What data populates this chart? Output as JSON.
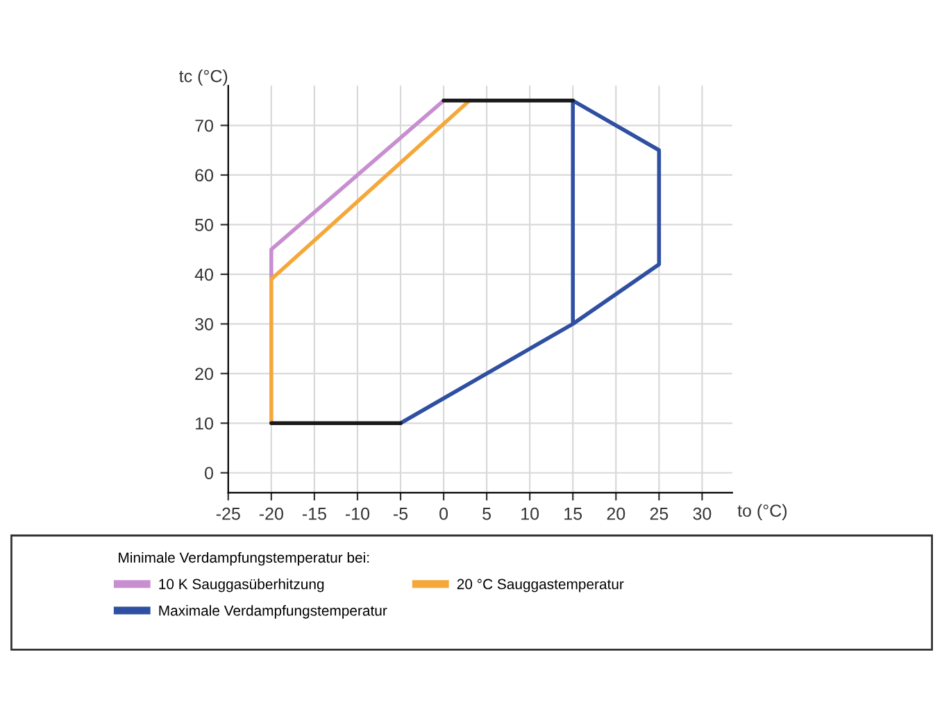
{
  "chart_data": {
    "type": "line",
    "xlabel": "to (°C)",
    "ylabel": "tc (°C)",
    "legend_title": "Minimale Verdampfungstemperatur bei:",
    "series": [
      {
        "name": "10 K Sauggasüberhitzung",
        "color": "#c88fd0",
        "x": [
          -20,
          -20,
          0
        ],
        "values": [
          39,
          45,
          75
        ]
      },
      {
        "name": "20 °C Sauggastemperatur",
        "color": "#f5a83a",
        "x": [
          -20,
          -20,
          3
        ],
        "values": [
          10,
          39,
          75
        ]
      },
      {
        "name": "Maximale Verdampfungstemperatur",
        "color": "#2f4fa2",
        "x": [
          -5,
          15,
          25,
          25,
          15,
          15
        ],
        "values": [
          10,
          30,
          42,
          65,
          75,
          30
        ]
      },
      {
        "color": "#1a1a1a",
        "x": [
          -20,
          -5,
          -2,
          0,
          15
        ],
        "values": [
          10,
          10,
          null,
          75,
          75
        ]
      }
    ],
    "xlim": [
      -25,
      33.5
    ],
    "ylim": [
      -4,
      78
    ],
    "xticks": [
      -25,
      -20,
      -15,
      -10,
      -5,
      0,
      5,
      10,
      15,
      20,
      25,
      30
    ],
    "yticks": [
      0,
      10,
      20,
      30,
      40,
      50,
      60,
      70
    ],
    "grid": true,
    "legend": "bottom",
    "marker": "none",
    "line_style": "solid"
  }
}
